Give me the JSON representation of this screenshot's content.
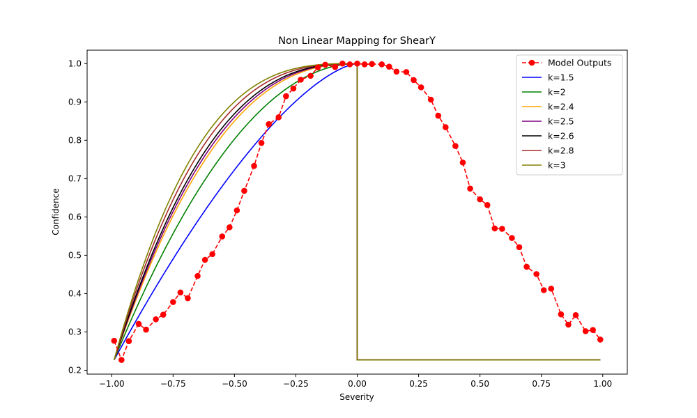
{
  "chart_data": {
    "type": "line",
    "title": "Non Linear Mapping for ShearY",
    "xlabel": "Severity",
    "ylabel": "Confidence",
    "xlim": [
      -1.1,
      1.1
    ],
    "ylim": [
      0.19,
      1.035
    ],
    "xticks": [
      -1.0,
      -0.75,
      -0.5,
      -0.25,
      0.0,
      0.25,
      0.5,
      0.75,
      1.0
    ],
    "xtick_labels": [
      "−1.00",
      "−0.75",
      "−0.50",
      "−0.25",
      "0.00",
      "0.25",
      "0.50",
      "0.75",
      "1.00"
    ],
    "yticks": [
      0.2,
      0.3,
      0.4,
      0.5,
      0.6,
      0.7,
      0.8,
      0.9,
      1.0
    ],
    "ytick_labels": [
      "0.2",
      "0.3",
      "0.4",
      "0.5",
      "0.6",
      "0.7",
      "0.8",
      "0.9",
      "1.0"
    ],
    "grid": false,
    "legend_position": "top-right",
    "colors": {
      "model": "#ff0000",
      "k15": "#0000ff",
      "k2": "#008000",
      "k24": "#ffa500",
      "k25": "#800080",
      "k26": "#000000",
      "k28": "#a52a2a",
      "k3": "#808000"
    },
    "series": [
      {
        "name": "Model Outputs",
        "style": "dashed-markers",
        "color": "#ff0000",
        "x": [
          -0.99,
          -0.96,
          -0.93,
          -0.89,
          -0.86,
          -0.82,
          -0.79,
          -0.75,
          -0.72,
          -0.69,
          -0.65,
          -0.62,
          -0.59,
          -0.55,
          -0.52,
          -0.49,
          -0.46,
          -0.42,
          -0.39,
          -0.36,
          -0.32,
          -0.29,
          -0.26,
          -0.23,
          -0.19,
          -0.16,
          -0.13,
          -0.09,
          -0.06,
          -0.03,
          0.0,
          0.03,
          0.06,
          0.1,
          0.13,
          0.16,
          0.2,
          0.23,
          0.26,
          0.3,
          0.33,
          0.36,
          0.4,
          0.43,
          0.46,
          0.5,
          0.53,
          0.56,
          0.59,
          0.63,
          0.66,
          0.69,
          0.73,
          0.76,
          0.79,
          0.83,
          0.86,
          0.89,
          0.93,
          0.96,
          0.99
        ],
        "y": [
          0.277,
          0.227,
          0.276,
          0.321,
          0.306,
          0.333,
          0.345,
          0.378,
          0.403,
          0.388,
          0.446,
          0.488,
          0.503,
          0.549,
          0.573,
          0.617,
          0.668,
          0.733,
          0.793,
          0.842,
          0.86,
          0.915,
          0.935,
          0.958,
          0.968,
          0.99,
          0.997,
          0.991,
          1.0,
          0.998,
          1.0,
          0.998,
          0.999,
          0.998,
          0.992,
          0.979,
          0.978,
          0.957,
          0.938,
          0.906,
          0.864,
          0.834,
          0.785,
          0.742,
          0.674,
          0.646,
          0.631,
          0.57,
          0.569,
          0.545,
          0.521,
          0.47,
          0.451,
          0.409,
          0.413,
          0.346,
          0.319,
          0.344,
          0.302,
          0.305,
          0.28
        ]
      },
      {
        "name": "k=1.5",
        "color": "#0000ff",
        "k": 1.5
      },
      {
        "name": "k=2",
        "color": "#008000",
        "k": 2
      },
      {
        "name": "k=2.4",
        "color": "#ffa500",
        "k": 2.4
      },
      {
        "name": "k=2.5",
        "color": "#800080",
        "k": 2.5
      },
      {
        "name": "k=2.6",
        "color": "#000000",
        "k": 2.6
      },
      {
        "name": "k=2.8",
        "color": "#a52a2a",
        "k": 2.8
      },
      {
        "name": "k=3",
        "color": "#808000",
        "k": 3
      }
    ],
    "mapping_curves": {
      "x_start": -0.99,
      "x_end": 0.99,
      "y_min": 0.227,
      "y_max": 1.0
    }
  }
}
